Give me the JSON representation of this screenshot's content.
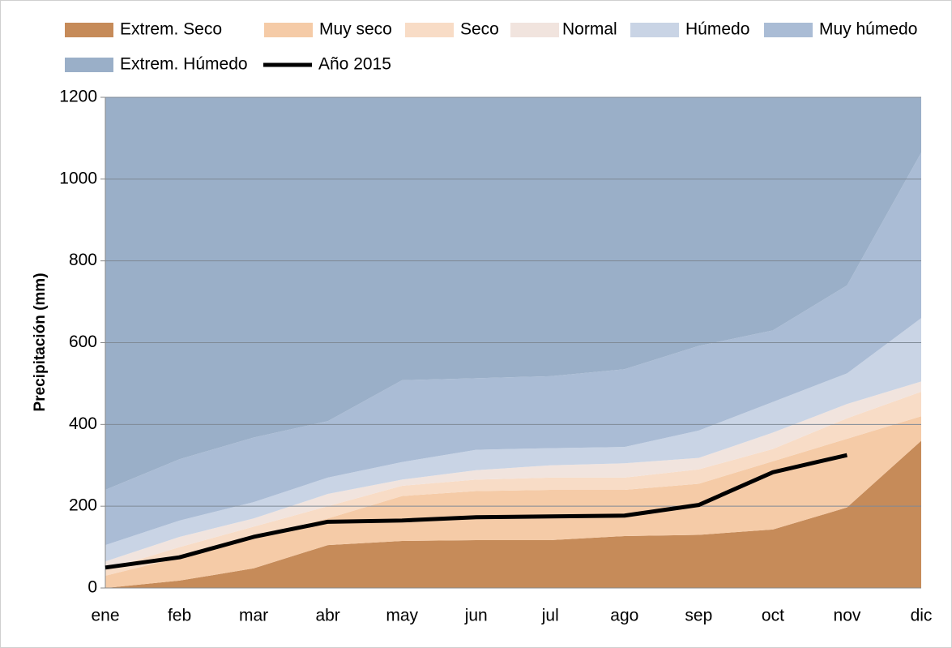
{
  "chart_data": {
    "type": "stacked_area",
    "y_label": "Precipitación (mm)",
    "categories": [
      "ene",
      "feb",
      "mar",
      "abr",
      "may",
      "jun",
      "jul",
      "ago",
      "sep",
      "oct",
      "nov",
      "dic"
    ],
    "ylim": [
      0,
      1200
    ],
    "yticks": [
      0,
      200,
      400,
      600,
      800,
      1000,
      1200
    ],
    "grid": true,
    "series": [
      {
        "name": "Extrem. Seco",
        "color": "#c68b59",
        "values": [
          0,
          18,
          48,
          105,
          115,
          117,
          117,
          127,
          130,
          143,
          197,
          360
        ]
      },
      {
        "name": "Muy seco",
        "color": "#f5cba7",
        "values": [
          30,
          57,
          77,
          65,
          110,
          120,
          123,
          113,
          125,
          167,
          168,
          60
        ]
      },
      {
        "name": "Seco",
        "color": "#f8dcc6",
        "values": [
          15,
          25,
          25,
          30,
          25,
          28,
          30,
          30,
          35,
          30,
          50,
          60
        ]
      },
      {
        "name": "Normal",
        "color": "#f1e4de",
        "values": [
          20,
          25,
          20,
          30,
          15,
          23,
          30,
          35,
          28,
          40,
          35,
          25
        ]
      },
      {
        "name": "Húmedo",
        "color": "#c9d4e5",
        "values": [
          40,
          40,
          40,
          40,
          43,
          50,
          42,
          40,
          67,
          75,
          75,
          155
        ]
      },
      {
        "name": "Muy húmedo",
        "color": "#aabcd5",
        "values": [
          135,
          150,
          158,
          138,
          200,
          175,
          176,
          190,
          207,
          175,
          215,
          405
        ]
      },
      {
        "name": "Extrem. Húmedo",
        "color": "#9aafc8",
        "values": [
          960,
          885,
          832,
          792,
          692,
          687,
          682,
          665,
          608,
          570,
          460,
          135
        ]
      }
    ],
    "line": {
      "name": "Año 2015",
      "color": "#000000",
      "values": [
        50,
        75,
        125,
        162,
        165,
        173,
        175,
        177,
        203,
        283,
        325,
        null
      ]
    }
  }
}
